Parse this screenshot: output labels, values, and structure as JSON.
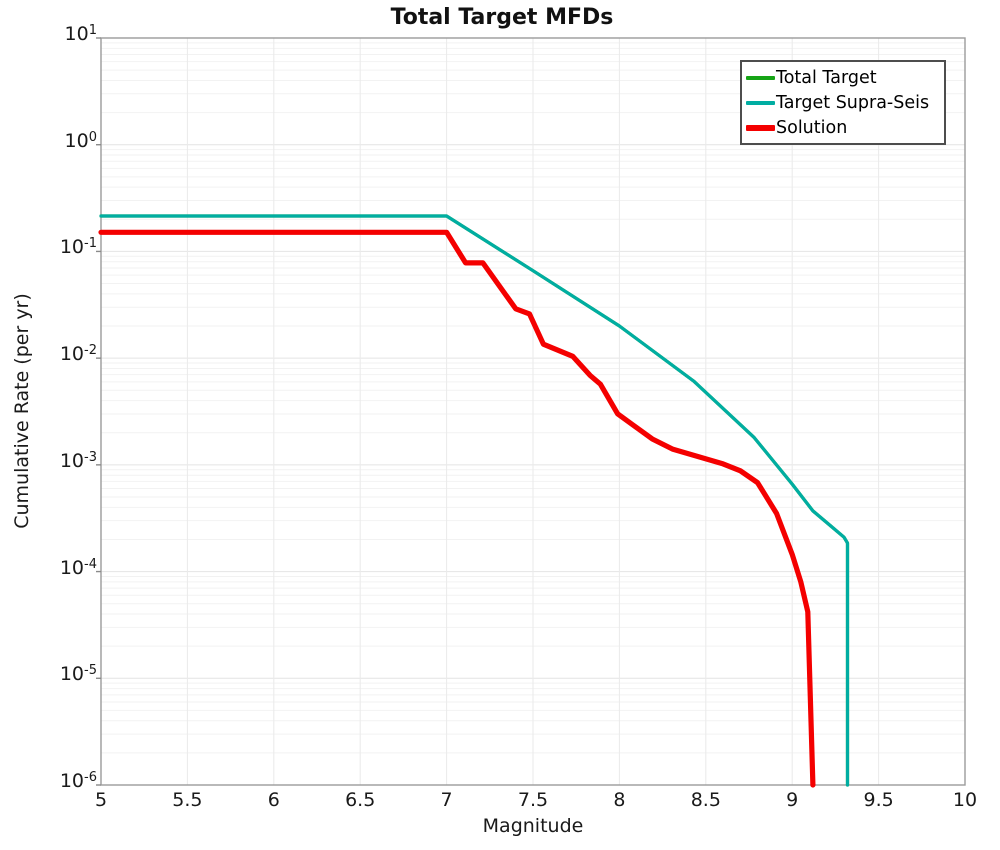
{
  "figure": {
    "title": "Total Target MFDs",
    "xlabel": "Magnitude",
    "ylabel": "Cumulative Rate (per yr)"
  },
  "chart_data": {
    "type": "line",
    "title": "Total Target MFDs",
    "xlabel": "Magnitude",
    "ylabel": "Cumulative Rate (per yr)",
    "x_axis": {
      "min": 5,
      "max": 10,
      "scale": "linear",
      "ticks": [
        {
          "value": 5,
          "label": "5"
        },
        {
          "value": 5.5,
          "label": "5.5"
        },
        {
          "value": 6,
          "label": "6"
        },
        {
          "value": 6.5,
          "label": "6.5"
        },
        {
          "value": 7,
          "label": "7"
        },
        {
          "value": 7.5,
          "label": "7.5"
        },
        {
          "value": 8,
          "label": "8"
        },
        {
          "value": 8.5,
          "label": "8.5"
        },
        {
          "value": 9,
          "label": "9"
        },
        {
          "value": 9.5,
          "label": "9.5"
        },
        {
          "value": 10,
          "label": "10"
        }
      ]
    },
    "y_axis": {
      "min": 1e-06,
      "max": 10,
      "scale": "log",
      "tick_base": "10",
      "tick_exponents": [
        1,
        0,
        -1,
        -2,
        -3,
        -4,
        -5,
        -6
      ]
    },
    "grid": {
      "vertical_step": 0.5,
      "log_minor_lines": true,
      "minor_color": "#f2f2f2",
      "major_color": "#e4e4e4",
      "vertical_color": "#eaeaea",
      "axis_color": "#9b9b9b"
    },
    "legend": {
      "position": "top-right",
      "border_color": "#4d4d4d"
    },
    "series": [
      {
        "name": "Total Target",
        "color": "#16a416",
        "line_width": 3.2,
        "points": [
          [
            5.0,
            0.215
          ],
          [
            7.0,
            0.215
          ],
          [
            7.5,
            0.066
          ],
          [
            8.0,
            0.02
          ],
          [
            8.43,
            0.0061
          ],
          [
            8.78,
            0.0018
          ],
          [
            9.0,
            0.00066
          ],
          [
            9.12,
            0.00037
          ],
          [
            9.22,
            0.00027
          ],
          [
            9.3,
            0.00021
          ],
          [
            9.32,
            0.000185
          ],
          [
            9.32,
            1e-06
          ]
        ]
      },
      {
        "name": "Target Supra-Seis",
        "color": "#00ada2",
        "line_width": 3.2,
        "points": [
          [
            5.0,
            0.215
          ],
          [
            7.0,
            0.215
          ],
          [
            7.5,
            0.066
          ],
          [
            8.0,
            0.02
          ],
          [
            8.43,
            0.0061
          ],
          [
            8.78,
            0.0018
          ],
          [
            9.0,
            0.00066
          ],
          [
            9.12,
            0.00037
          ],
          [
            9.22,
            0.00027
          ],
          [
            9.3,
            0.00021
          ],
          [
            9.32,
            0.000185
          ],
          [
            9.32,
            1e-06
          ]
        ]
      },
      {
        "name": "Solution",
        "color": "#f40000",
        "line_width": 5.2,
        "points": [
          [
            5.0,
            0.151
          ],
          [
            7.0,
            0.151
          ],
          [
            7.11,
            0.078
          ],
          [
            7.21,
            0.078
          ],
          [
            7.4,
            0.029
          ],
          [
            7.48,
            0.026
          ],
          [
            7.56,
            0.0135
          ],
          [
            7.73,
            0.0104
          ],
          [
            7.83,
            0.0069
          ],
          [
            7.89,
            0.0057
          ],
          [
            7.99,
            0.003
          ],
          [
            8.19,
            0.00175
          ],
          [
            8.31,
            0.0014
          ],
          [
            8.6,
            0.00102
          ],
          [
            8.7,
            0.00088
          ],
          [
            8.8,
            0.00068
          ],
          [
            8.91,
            0.00035
          ],
          [
            9.0,
            0.000145
          ],
          [
            9.05,
            8e-05
          ],
          [
            9.09,
            4.2e-05
          ],
          [
            9.12,
            1e-06
          ]
        ]
      }
    ]
  }
}
